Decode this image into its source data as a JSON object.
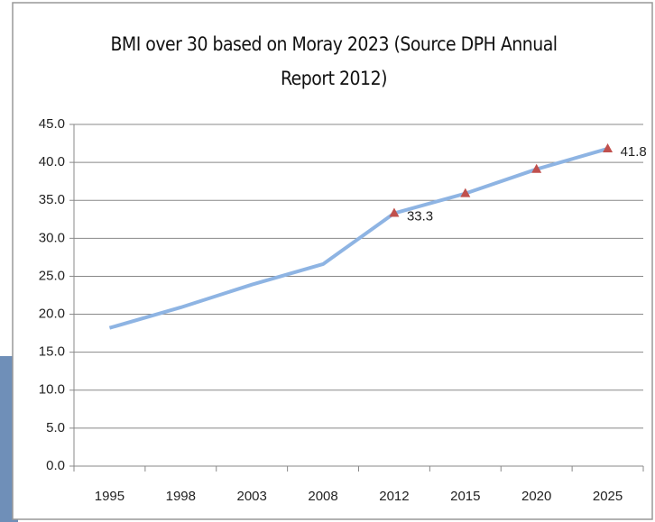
{
  "chart_data": {
    "type": "line",
    "title": "BMI over 30 based on Moray 2023 (Source DPH Annual Report 2012)",
    "categories": [
      "1995",
      "1998",
      "2003",
      "2008",
      "2012",
      "2015",
      "2020",
      "2025"
    ],
    "values": [
      18.2,
      20.9,
      23.9,
      26.6,
      33.3,
      35.9,
      39.1,
      41.8
    ],
    "value_labels": [
      null,
      null,
      null,
      null,
      "33.3",
      null,
      null,
      "41.8"
    ],
    "markers": [
      false,
      false,
      false,
      false,
      true,
      true,
      true,
      true
    ],
    "color": "#8eb4e3",
    "marker_color": "#c0504d",
    "ylim": [
      0,
      45
    ],
    "yticks": [
      {
        "value": 0,
        "label": "0.0"
      },
      {
        "value": 5,
        "label": "5.0"
      },
      {
        "value": 10,
        "label": "10.0"
      },
      {
        "value": 15,
        "label": "15.0"
      },
      {
        "value": 20,
        "label": "20.0"
      },
      {
        "value": 25,
        "label": "25.0"
      },
      {
        "value": 30,
        "label": "30.0"
      },
      {
        "value": 35,
        "label": "35.0"
      },
      {
        "value": 40,
        "label": "40.0"
      },
      {
        "value": 45,
        "label": "45.0"
      }
    ],
    "grid": true
  }
}
